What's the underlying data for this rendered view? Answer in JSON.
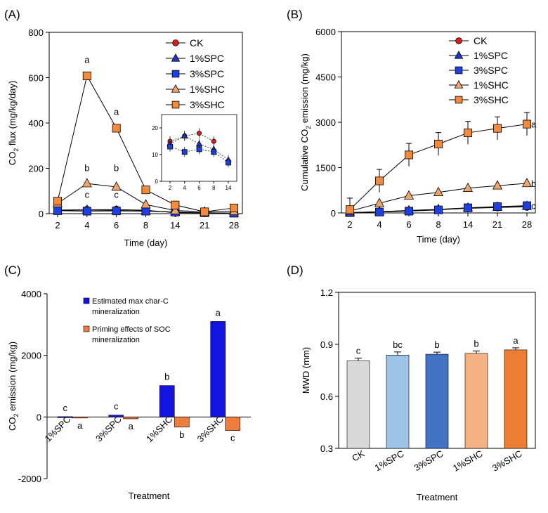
{
  "colors": {
    "ck": "#e31a1c",
    "spc1": "#1f35c9",
    "spc3": "#1f3fe6",
    "shc_orange": "#f58a3c",
    "shc_tri": "#f2a56a",
    "bar_c_blue": "#1414e0",
    "bar_c_orange": "#ee7d3e",
    "bar_d": [
      "#d9d9d9",
      "#9dc3e6",
      "#4472c4",
      "#f4b183",
      "#ed7d31"
    ]
  },
  "chart_data": [
    {
      "id": "A",
      "panel_label": "(A)",
      "type": "line",
      "xlabel": "Time (day)",
      "ylabel_main": "CO",
      "ylabel_sub": "2",
      "ylabel_rest": " flux (mg/kg/day)",
      "categories": [
        "2",
        "4",
        "6",
        "8",
        "14",
        "21",
        "28"
      ],
      "ylim": [
        0,
        800
      ],
      "yticks": [
        0,
        200,
        400,
        600,
        800
      ],
      "series": [
        {
          "name": "CK",
          "marker": "circle",
          "values": [
            16,
            17,
            18,
            15,
            4,
            3,
            2
          ]
        },
        {
          "name": "1%SPC",
          "marker": "triangle",
          "values": [
            14,
            16,
            14,
            12,
            7,
            4,
            2
          ]
        },
        {
          "name": "3%SPC",
          "marker": "square",
          "values": [
            13,
            11,
            12,
            11,
            7,
            4,
            2
          ]
        },
        {
          "name": "1%SHC",
          "marker": "triangle",
          "values": [
            45,
            133,
            118,
            40,
            14,
            8,
            10
          ]
        },
        {
          "name": "3%SHC",
          "marker": "square",
          "values": [
            55,
            608,
            377,
            105,
            38,
            8,
            25
          ]
        }
      ],
      "annotations": [
        {
          "text": "a",
          "cat": 1,
          "value": 665
        },
        {
          "text": "b",
          "cat": 1,
          "value": 188
        },
        {
          "text": "c",
          "cat": 1,
          "value": 70
        },
        {
          "text": "a",
          "cat": 2,
          "value": 435
        },
        {
          "text": "b",
          "cat": 2,
          "value": 188
        },
        {
          "text": "c",
          "cat": 2,
          "value": 70
        }
      ],
      "inset": {
        "categories": [
          "2",
          "4",
          "6",
          "8",
          "14"
        ],
        "ylim": [
          0,
          25
        ],
        "yticks": [
          0,
          10,
          20
        ],
        "series": [
          {
            "name": "CK",
            "marker": "circle",
            "values": [
              15,
              17,
              18,
              15,
              null
            ]
          },
          {
            "name": "1%SPC",
            "marker": "triangle",
            "values": [
              14,
              17,
              14,
              12,
              8
            ]
          },
          {
            "name": "3%SPC",
            "marker": "square",
            "values": [
              13,
              11,
              12,
              11,
              7
            ]
          }
        ]
      },
      "legend": [
        "CK",
        "1%SPC",
        "3%SPC",
        "1%SHC",
        "3%SHC"
      ]
    },
    {
      "id": "B",
      "panel_label": "(B)",
      "type": "line",
      "xlabel": "Time (day)",
      "ylabel_main": "Cumulative CO",
      "ylabel_sub": "2",
      "ylabel_rest": " emission (mg/kg)",
      "categories": [
        "2",
        "4",
        "6",
        "8",
        "14",
        "21",
        "28"
      ],
      "ylim": [
        0,
        6000
      ],
      "yticks": [
        0,
        1500,
        3000,
        4500,
        6000
      ],
      "series": [
        {
          "name": "CK",
          "marker": "circle",
          "values": [
            10,
            40,
            80,
            110,
            150,
            180,
            200
          ],
          "err": [
            0,
            0,
            0,
            0,
            0,
            0,
            0
          ]
        },
        {
          "name": "1%SPC",
          "marker": "triangle",
          "values": [
            10,
            40,
            80,
            120,
            170,
            200,
            230
          ],
          "err": [
            0,
            0,
            0,
            0,
            0,
            0,
            0
          ]
        },
        {
          "name": "3%SPC",
          "marker": "square",
          "values": [
            10,
            30,
            60,
            100,
            170,
            210,
            240
          ],
          "err": [
            0,
            0,
            0,
            0,
            0,
            0,
            0
          ]
        },
        {
          "name": "1%SHC",
          "marker": "triangle",
          "values": [
            60,
            320,
            570,
            680,
            820,
            900,
            980
          ],
          "err": [
            0,
            0,
            0,
            0,
            0,
            0,
            0
          ]
        },
        {
          "name": "3%SHC",
          "marker": "square",
          "values": [
            110,
            1060,
            1920,
            2280,
            2650,
            2800,
            2940
          ],
          "err": [
            380,
            380,
            380,
            380,
            380,
            380,
            380
          ]
        }
      ],
      "annotations": [
        {
          "text": "a",
          "value": 2940
        },
        {
          "text": "b",
          "value": 980
        },
        {
          "text": "c",
          "value": 240
        }
      ],
      "legend": [
        "CK",
        "1%SPC",
        "3%SPC",
        "1%SHC",
        "3%SHC"
      ]
    },
    {
      "id": "C",
      "panel_label": "(C)",
      "type": "bar",
      "xlabel": "Treatment",
      "ylabel_main": "CO",
      "ylabel_sub": "2",
      "ylabel_rest": " emission (mg/kg)",
      "categories": [
        "1%SPC",
        "3%SPC",
        "1%SHC",
        "3%SHC"
      ],
      "ylim": [
        -2000,
        4000
      ],
      "yticks": [
        -2000,
        0,
        2000,
        4000
      ],
      "series": [
        {
          "name": "Estimated max char-C mineralization",
          "values": [
            10,
            60,
            1020,
            3100
          ],
          "letters": [
            "c",
            "c",
            "b",
            "a"
          ]
        },
        {
          "name": "Priming effects of SOC mineralization",
          "values": [
            -30,
            -60,
            -330,
            -440
          ],
          "letters": [
            "a",
            "a",
            "b",
            "c"
          ]
        }
      ]
    },
    {
      "id": "D",
      "panel_label": "(D)",
      "type": "bar",
      "xlabel": "Treatment",
      "ylabel": "MWD (mm)",
      "categories": [
        "CK",
        "1%SPC",
        "3%SPC",
        "1%SHC",
        "3%SHC"
      ],
      "ylim": [
        0.3,
        1.2
      ],
      "yticks": [
        "0.3",
        "0.6",
        "0.9",
        "1.2"
      ],
      "values": [
        0.805,
        0.838,
        0.843,
        0.848,
        0.868
      ],
      "err": [
        0.015,
        0.018,
        0.012,
        0.014,
        0.012
      ],
      "letters": [
        "c",
        "bc",
        "b",
        "b",
        "a"
      ]
    }
  ]
}
